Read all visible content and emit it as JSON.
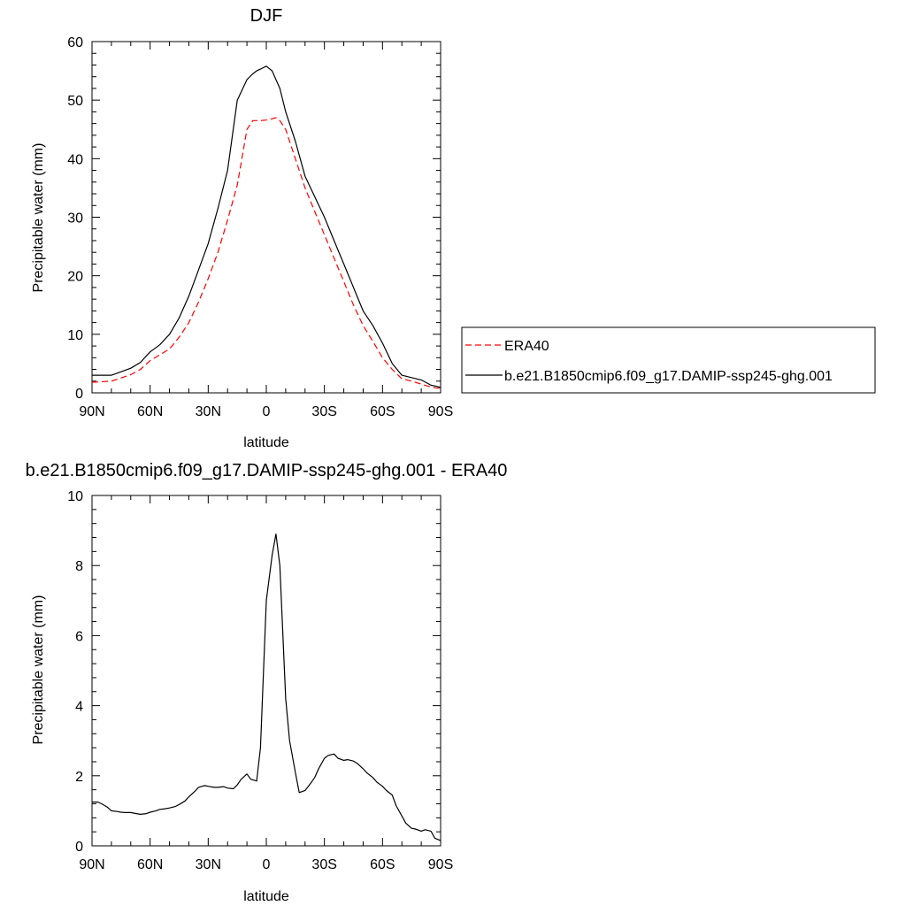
{
  "colors": {
    "model": "#000000",
    "era40": "#ff0000",
    "background": "#ffffff"
  },
  "chart_data": [
    {
      "type": "line",
      "title": "DJF",
      "xlabel": "latitude",
      "ylabel": "Precipitable water (mm)",
      "xlim": [
        -90,
        90
      ],
      "ylim": [
        0,
        60
      ],
      "x_tick_values": [
        -90,
        -60,
        -30,
        0,
        30,
        60,
        90
      ],
      "x_tick_labels": [
        "90N",
        "60N",
        "30N",
        "0",
        "30S",
        "60S",
        "90S"
      ],
      "y_tick_values": [
        0,
        10,
        20,
        30,
        40,
        50,
        60
      ],
      "y_tick_labels": [
        "0",
        "10",
        "20",
        "30",
        "40",
        "50",
        "60"
      ],
      "legend_position": "right",
      "series": [
        {
          "name": "ERA40",
          "color": "#ff0000",
          "dash": "dashed",
          "x": [
            -90,
            -80,
            -70,
            -65,
            -60,
            -55,
            -50,
            -45,
            -40,
            -35,
            -30,
            -25,
            -20,
            -15,
            -10,
            -7,
            -5,
            -3,
            0,
            3,
            5,
            7,
            10,
            15,
            20,
            25,
            30,
            35,
            40,
            45,
            50,
            55,
            60,
            65,
            70,
            75,
            80,
            85,
            88,
            90
          ],
          "values": [
            1.8,
            2.0,
            3.1,
            4.0,
            5.5,
            6.5,
            7.5,
            9.5,
            12.0,
            15.5,
            19.5,
            24.0,
            29.5,
            35.5,
            45.0,
            46.5,
            46.5,
            46.5,
            46.6,
            46.8,
            47.0,
            46.5,
            45.0,
            40.0,
            35.0,
            31.0,
            27.0,
            23.0,
            19.0,
            15.0,
            11.5,
            8.8,
            6.0,
            4.0,
            2.4,
            2.0,
            1.5,
            1.0,
            0.8,
            0.8
          ]
        },
        {
          "name": "b.e21.B1850cmip6.f09_g17.DAMIP-ssp245-ghg.001",
          "color": "#000000",
          "dash": "solid",
          "x": [
            -90,
            -80,
            -70,
            -65,
            -60,
            -55,
            -50,
            -45,
            -40,
            -35,
            -30,
            -25,
            -20,
            -15,
            -10,
            -7,
            -5,
            -3,
            0,
            3,
            5,
            7,
            10,
            15,
            20,
            25,
            30,
            35,
            40,
            45,
            50,
            55,
            60,
            65,
            70,
            75,
            80,
            85,
            88,
            90
          ],
          "values": [
            3.0,
            3.0,
            4.2,
            5.2,
            7.0,
            8.2,
            10.0,
            12.8,
            16.5,
            21.0,
            25.5,
            31.5,
            38.0,
            50.0,
            53.5,
            54.5,
            55.0,
            55.3,
            55.8,
            55.0,
            53.5,
            52.0,
            48.0,
            43.0,
            37.0,
            33.5,
            30.0,
            26.0,
            22.0,
            18.0,
            14.0,
            11.5,
            8.5,
            5.0,
            3.0,
            2.6,
            2.2,
            1.3,
            1.1,
            0.9
          ]
        }
      ]
    },
    {
      "type": "line",
      "title": "b.e21.B1850cmip6.f09_g17.DAMIP-ssp245-ghg.001 - ERA40",
      "xlabel": "latitude",
      "ylabel": "Precipitable water (mm)",
      "xlim": [
        -90,
        90
      ],
      "ylim": [
        0,
        10
      ],
      "x_tick_values": [
        -90,
        -60,
        -30,
        0,
        30,
        60,
        90
      ],
      "x_tick_labels": [
        "90N",
        "60N",
        "30N",
        "0",
        "30S",
        "60S",
        "90S"
      ],
      "y_tick_values": [
        0,
        2,
        4,
        6,
        8,
        10
      ],
      "y_tick_labels": [
        "0",
        "2",
        "4",
        "6",
        "8",
        "10"
      ],
      "series": [
        {
          "color": "#000000",
          "dash": "solid",
          "x": [
            -90,
            -87,
            -85,
            -82,
            -80,
            -77,
            -75,
            -73,
            -70,
            -67,
            -65,
            -62,
            -60,
            -57,
            -55,
            -52,
            -50,
            -47,
            -45,
            -42,
            -40,
            -37,
            -35,
            -32,
            -30,
            -27,
            -25,
            -22,
            -20,
            -17,
            -15,
            -13,
            -10,
            -8,
            -5,
            -3,
            0,
            3,
            5,
            7,
            10,
            12,
            15,
            17,
            20,
            22,
            25,
            27,
            30,
            32,
            35,
            37,
            40,
            42,
            45,
            47,
            50,
            52,
            55,
            57,
            60,
            62,
            65,
            67,
            70,
            72,
            75,
            77,
            80,
            82,
            85,
            87,
            90
          ],
          "values": [
            1.25,
            1.25,
            1.2,
            1.1,
            1.0,
            0.98,
            0.96,
            0.95,
            0.95,
            0.92,
            0.9,
            0.92,
            0.96,
            1.0,
            1.04,
            1.06,
            1.08,
            1.12,
            1.18,
            1.28,
            1.4,
            1.55,
            1.67,
            1.72,
            1.7,
            1.67,
            1.67,
            1.69,
            1.65,
            1.63,
            1.74,
            1.9,
            2.05,
            1.9,
            1.85,
            2.8,
            7.0,
            8.3,
            8.9,
            8.0,
            4.2,
            3.0,
            2.1,
            1.52,
            1.58,
            1.72,
            1.95,
            2.2,
            2.5,
            2.58,
            2.62,
            2.5,
            2.44,
            2.46,
            2.42,
            2.35,
            2.2,
            2.08,
            1.95,
            1.82,
            1.7,
            1.58,
            1.45,
            1.15,
            0.85,
            0.65,
            0.5,
            0.48,
            0.42,
            0.46,
            0.42,
            0.22,
            0.15
          ]
        }
      ]
    }
  ]
}
